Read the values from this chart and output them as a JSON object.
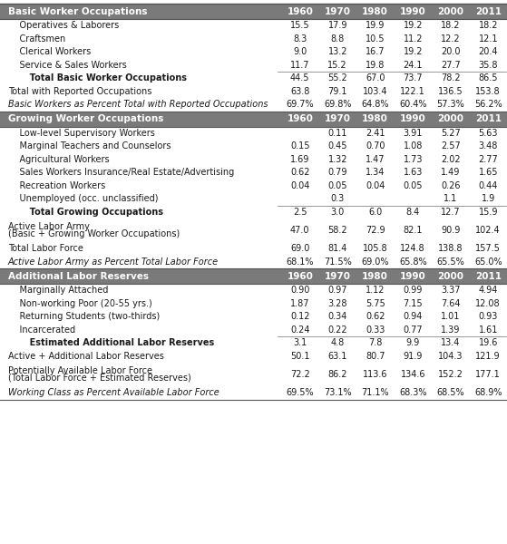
{
  "header_bg": "#7a7a7a",
  "header_fg": "#ffffff",
  "sections": [
    {
      "header": "Basic Worker Occupations",
      "rows": [
        {
          "label": "    Operatives & Laborers",
          "values": [
            "15.5",
            "17.9",
            "19.9",
            "19.2",
            "18.2",
            "18.2"
          ],
          "style": "normal",
          "line_below": false
        },
        {
          "label": "    Craftsmen",
          "values": [
            "8.3",
            "8.8",
            "10.5",
            "11.2",
            "12.2",
            "12.1"
          ],
          "style": "normal",
          "line_below": false
        },
        {
          "label": "    Clerical Workers",
          "values": [
            "9.0",
            "13.2",
            "16.7",
            "19.2",
            "20.0",
            "20.4"
          ],
          "style": "normal",
          "line_below": false
        },
        {
          "label": "    Service & Sales Workers",
          "values": [
            "11.7",
            "15.2",
            "19.8",
            "24.1",
            "27.7",
            "35.8"
          ],
          "style": "normal",
          "line_below": true
        },
        {
          "label": "       Total Basic Worker Occupations",
          "values": [
            "44.5",
            "55.2",
            "67.0",
            "73.7",
            "78.2",
            "86.5"
          ],
          "style": "bold",
          "line_below": false
        },
        {
          "label": "Total with Reported Occupations",
          "values": [
            "63.8",
            "79.1",
            "103.4",
            "122.1",
            "136.5",
            "153.8"
          ],
          "style": "normal",
          "line_below": false
        },
        {
          "label": "Basic Workers as Percent Total with Reported Occupations",
          "values": [
            "69.7%",
            "69.8%",
            "64.8%",
            "60.4%",
            "57.3%",
            "56.2%"
          ],
          "style": "italic",
          "line_below": false
        }
      ]
    },
    {
      "header": "Growing Worker Occupations",
      "rows": [
        {
          "label": "    Low-level Supervisory Workers",
          "values": [
            "",
            "0.11",
            "2.41",
            "3.91",
            "5.27",
            "5.63"
          ],
          "style": "normal",
          "line_below": false
        },
        {
          "label": "    Marginal Teachers and Counselors",
          "values": [
            "0.15",
            "0.45",
            "0.70",
            "1.08",
            "2.57",
            "3.48"
          ],
          "style": "normal",
          "line_below": false
        },
        {
          "label": "    Agricultural Workers",
          "values": [
            "1.69",
            "1.32",
            "1.47",
            "1.73",
            "2.02",
            "2.77"
          ],
          "style": "normal",
          "line_below": false
        },
        {
          "label": "    Sales Workers Insurance/Real Estate/Advertising",
          "values": [
            "0.62",
            "0.79",
            "1.34",
            "1.63",
            "1.49",
            "1.65"
          ],
          "style": "normal",
          "line_below": false
        },
        {
          "label": "    Recreation Workers",
          "values": [
            "0.04",
            "0.05",
            "0.04",
            "0.05",
            "0.26",
            "0.44"
          ],
          "style": "normal",
          "line_below": false
        },
        {
          "label": "    Unemployed (occ. unclassified)",
          "values": [
            "",
            "0.3",
            "",
            "",
            "1.1",
            "1.9"
          ],
          "style": "normal",
          "line_below": true
        },
        {
          "label": "       Total Growing Occupations",
          "values": [
            "2.5",
            "3.0",
            "6.0",
            "8.4",
            "12.7",
            "15.9"
          ],
          "style": "bold",
          "line_below": false
        },
        {
          "label": "Active Labor Army\n(Basic + Growing Worker Occupations)",
          "values": [
            "47.0",
            "58.2",
            "72.9",
            "82.1",
            "90.9",
            "102.4"
          ],
          "style": "normal",
          "line_below": false
        },
        {
          "label": "Total Labor Force",
          "values": [
            "69.0",
            "81.4",
            "105.8",
            "124.8",
            "138.8",
            "157.5"
          ],
          "style": "normal",
          "line_below": false
        },
        {
          "label": "Active Labor Army as Percent Total Labor Force",
          "values": [
            "68.1%",
            "71.5%",
            "69.0%",
            "65.8%",
            "65.5%",
            "65.0%"
          ],
          "style": "italic",
          "line_below": false
        }
      ]
    },
    {
      "header": "Additional Labor Reserves",
      "rows": [
        {
          "label": "    Marginally Attached",
          "values": [
            "0.90",
            "0.97",
            "1.12",
            "0.99",
            "3.37",
            "4.94"
          ],
          "style": "normal",
          "line_below": false
        },
        {
          "label": "    Non-working Poor (20-55 yrs.)",
          "values": [
            "1.87",
            "3.28",
            "5.75",
            "7.15",
            "7.64",
            "12.08"
          ],
          "style": "normal",
          "line_below": false
        },
        {
          "label": "    Returning Students (two-thirds)",
          "values": [
            "0.12",
            "0.34",
            "0.62",
            "0.94",
            "1.01",
            "0.93"
          ],
          "style": "normal",
          "line_below": false
        },
        {
          "label": "    Incarcerated",
          "values": [
            "0.24",
            "0.22",
            "0.33",
            "0.77",
            "1.39",
            "1.61"
          ],
          "style": "normal",
          "line_below": true
        },
        {
          "label": "       Estimated Additional Labor Reserves",
          "values": [
            "3.1",
            "4.8",
            "7.8",
            "9.9",
            "13.4",
            "19.6"
          ],
          "style": "bold",
          "line_below": false
        },
        {
          "label": "Active + Additional Labor Reserves",
          "values": [
            "50.1",
            "63.1",
            "80.7",
            "91.9",
            "104.3",
            "121.9"
          ],
          "style": "normal",
          "line_below": false
        },
        {
          "label": "Potentially Available Labor Force\n(Total Labor Force + Estimated Reserves)",
          "values": [
            "72.2",
            "86.2",
            "113.6",
            "134.6",
            "152.2",
            "177.1"
          ],
          "style": "normal",
          "line_below": false
        },
        {
          "label": "Working Class as Percent Available Labor Force",
          "values": [
            "69.5%",
            "73.1%",
            "71.1%",
            "68.3%",
            "68.5%",
            "68.9%"
          ],
          "style": "italic",
          "line_below": false
        }
      ]
    }
  ]
}
